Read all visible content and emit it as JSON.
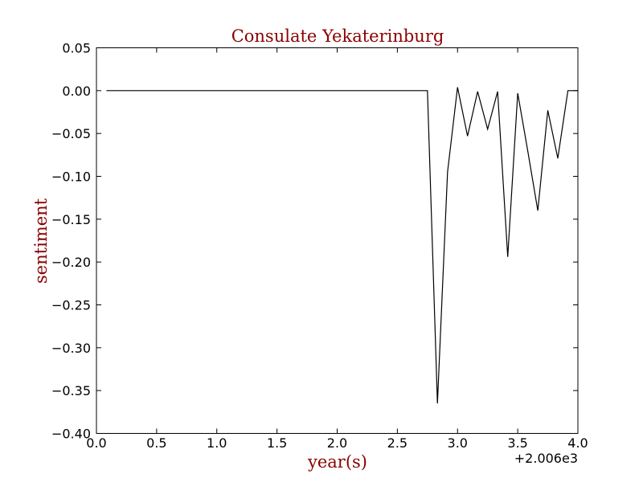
{
  "chart_data": {
    "type": "line",
    "title": "Consulate Yekaterinburg",
    "xlabel": "year(s)",
    "ylabel": "sentiment",
    "x_offset_label": "+2.006e3",
    "xlim": [
      0.0,
      4.0
    ],
    "ylim": [
      -0.4,
      0.05
    ],
    "x_ticks": [
      0.0,
      0.5,
      1.0,
      1.5,
      2.0,
      2.5,
      3.0,
      3.5,
      4.0
    ],
    "x_tick_labels": [
      "0.0",
      "0.5",
      "1.0",
      "1.5",
      "2.0",
      "2.5",
      "3.0",
      "3.5",
      "4.0"
    ],
    "y_ticks": [
      0.05,
      0.0,
      -0.05,
      -0.1,
      -0.15,
      -0.2,
      -0.25,
      -0.3,
      -0.35,
      -0.4
    ],
    "y_tick_labels": [
      "0.05",
      "0.00",
      "−0.05",
      "−0.10",
      "−0.15",
      "−0.20",
      "−0.25",
      "−0.30",
      "−0.35",
      "−0.40"
    ],
    "grid": false,
    "line_color": "#000000",
    "title_color": "#8b0000",
    "series": [
      {
        "x": [
          0.083,
          0.167,
          0.25,
          0.333,
          0.417,
          0.5,
          0.583,
          0.667,
          0.75,
          0.833,
          0.917,
          1.0,
          1.083,
          1.167,
          1.25,
          1.333,
          1.417,
          1.5,
          1.583,
          1.667,
          1.75,
          1.833,
          1.917,
          2.0,
          2.083,
          2.167,
          2.25,
          2.333,
          2.417,
          2.5,
          2.583,
          2.667,
          2.75,
          2.833,
          2.917,
          3.0,
          3.083,
          3.167,
          3.25,
          3.333,
          3.417,
          3.5,
          3.583,
          3.667,
          3.75,
          3.833,
          3.917,
          4.0
        ],
        "y": [
          0,
          0,
          0,
          0,
          0,
          0,
          0,
          0,
          0,
          0,
          0,
          0,
          0,
          0,
          0,
          0,
          0,
          0,
          0,
          0,
          0,
          0,
          0,
          0,
          0,
          0,
          0,
          0,
          0,
          0,
          0,
          0,
          0,
          -0.365,
          -0.095,
          0.004,
          -0.053,
          -0.001,
          -0.045,
          -0.001,
          -0.194,
          -0.003,
          -0.07,
          -0.14,
          -0.023,
          -0.079,
          0,
          0
        ]
      }
    ]
  }
}
